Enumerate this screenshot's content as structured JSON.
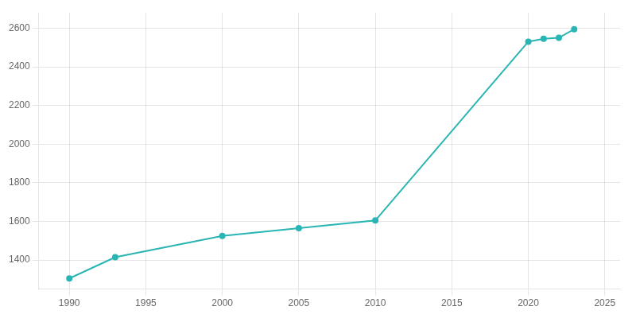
{
  "chart_data": {
    "type": "line",
    "x": [
      1990,
      1993,
      2000,
      2005,
      2010,
      2020,
      2021,
      2022,
      2023
    ],
    "values": [
      1305,
      1415,
      1525,
      1565,
      1605,
      2530,
      2545,
      2550,
      2595
    ],
    "color": "#2ab5b5",
    "marker": "circle",
    "xlim": [
      1988,
      2026
    ],
    "ylim": [
      1250,
      2680
    ],
    "xticks": [
      1990,
      1995,
      2000,
      2005,
      2010,
      2015,
      2020,
      2025
    ],
    "yticks": [
      1400,
      1600,
      1800,
      2000,
      2200,
      2400,
      2600
    ],
    "grid": true
  }
}
